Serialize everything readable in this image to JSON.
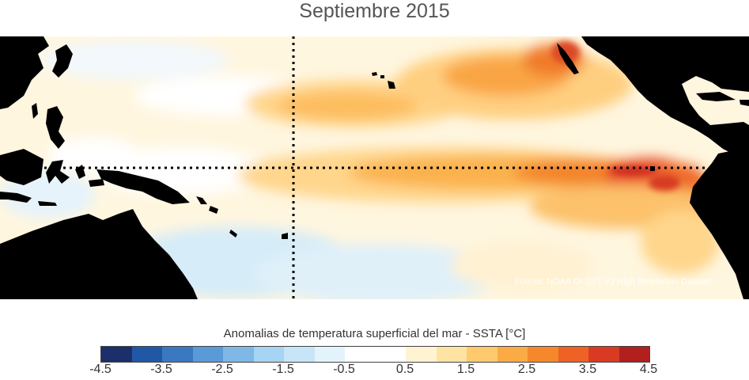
{
  "title": "Septiembre 2015",
  "source": "Fuente: NOAA OI SST V2 High Resolution Dataset",
  "colorbar": {
    "title": "Anomalias de temperatura superficial del mar - SSTA  [°C]",
    "colors": [
      "#1c2f6b",
      "#2158a6",
      "#3a79c2",
      "#5a9ad6",
      "#7fb8e6",
      "#a6d4f2",
      "#c7e5f7",
      "#e3f3fb",
      "#ffffff",
      "#ffffff",
      "#fff3d1",
      "#ffe3a3",
      "#ffc96e",
      "#fbab45",
      "#f5882b",
      "#ef6226",
      "#d93b22",
      "#b11f1f"
    ],
    "ticks": [
      "-4.5",
      "-3.5",
      "-2.5",
      "-1.5",
      "-0.5",
      "0.5",
      "1.5",
      "2.5",
      "3.5",
      "4.5"
    ]
  },
  "map": {
    "land_color": "#000000",
    "dotted_lines": [
      "equator",
      "180° meridian"
    ]
  }
}
